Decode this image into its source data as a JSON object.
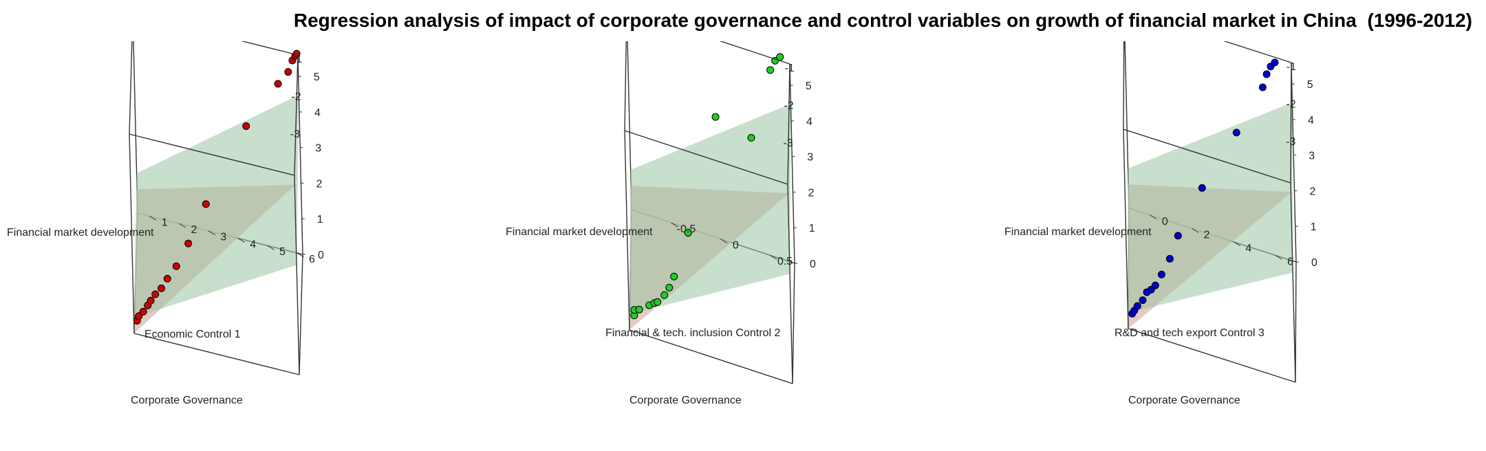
{
  "title": "Regression analysis of impact of corporate governance and control variables on growth of financial market in China",
  "title_years": "(1996-2012)",
  "chart_data": [
    {
      "type": "scatter",
      "subtype": "scatter3d-with-regression-planes",
      "xlabel": "Economic Control 1",
      "ylabel": "Corporate Governance",
      "zlabel": "Financial market development",
      "xlim": [
        0.6,
        6.2
      ],
      "ylim": [
        -3.6,
        -0.4
      ],
      "zlim": [
        0,
        5.6
      ],
      "x_ticks": [
        1,
        2,
        3,
        4,
        5,
        6
      ],
      "y_ticks": [
        -3,
        -2,
        -1
      ],
      "z_ticks": [
        0,
        1,
        2,
        3,
        4,
        5
      ],
      "point_color": "#cc0000",
      "plane_colors": [
        "#d9b8b0",
        "#9cc4a4"
      ],
      "points": [
        [
          0.7,
          -3.45,
          0.22
        ],
        [
          0.75,
          -3.3,
          0.2
        ],
        [
          0.9,
          -3.2,
          0.25
        ],
        [
          1.05,
          -3.05,
          0.3
        ],
        [
          1.15,
          -2.95,
          0.35
        ],
        [
          1.3,
          -2.8,
          0.4
        ],
        [
          1.5,
          -2.65,
          0.45
        ],
        [
          1.7,
          -2.45,
          0.55
        ],
        [
          2.0,
          -2.2,
          0.7
        ],
        [
          2.4,
          -1.8,
          1.0
        ],
        [
          3.0,
          -1.3,
          1.7
        ],
        [
          4.4,
          -0.75,
          3.6
        ],
        [
          5.5,
          -0.45,
          4.7
        ],
        [
          5.85,
          -0.35,
          5.0
        ],
        [
          6.0,
          -0.3,
          5.3
        ],
        [
          6.1,
          -0.3,
          5.45
        ],
        [
          6.15,
          -0.28,
          5.5
        ]
      ]
    },
    {
      "type": "scatter",
      "subtype": "scatter3d-with-regression-planes",
      "xlabel": "Financial & tech. inclusion Control 2",
      "ylabel": "Corporate Governance",
      "zlabel": "Financial market development",
      "xlim": [
        -0.9,
        0.75
      ],
      "ylim": [
        -3.6,
        -0.4
      ],
      "zlim": [
        0,
        5.6
      ],
      "x_ticks": [
        -0.5,
        0,
        0.5
      ],
      "y_ticks": [
        -3,
        -2,
        -1
      ],
      "z_ticks": [
        0,
        1,
        2,
        3,
        4,
        5
      ],
      "point_color": "#22cc22",
      "plane_colors": [
        "#d9b8b0",
        "#9cc4a4"
      ],
      "points": [
        [
          -0.85,
          -3.5,
          0.35
        ],
        [
          -0.85,
          -3.4,
          0.4
        ],
        [
          -0.8,
          -3.3,
          0.35
        ],
        [
          -0.7,
          -3.1,
          0.35
        ],
        [
          -0.65,
          -2.95,
          0.3
        ],
        [
          -0.62,
          -2.85,
          0.25
        ],
        [
          -0.55,
          -2.7,
          0.35
        ],
        [
          -0.5,
          -2.6,
          0.5
        ],
        [
          -0.45,
          -2.5,
          0.75
        ],
        [
          -0.3,
          -2.2,
          1.8
        ],
        [
          0.0,
          -1.7,
          4.8
        ],
        [
          0.35,
          -1.1,
          3.9
        ],
        [
          0.55,
          -0.45,
          5.3
        ],
        [
          0.6,
          -0.35,
          5.5
        ],
        [
          0.65,
          -0.3,
          5.6
        ]
      ]
    },
    {
      "type": "scatter",
      "subtype": "scatter3d-with-regression-planes",
      "xlabel": "R&D and tech export Control 3",
      "ylabel": "Corporate Governance",
      "zlabel": "Financial market development",
      "xlim": [
        -1,
        7
      ],
      "ylim": [
        -3.6,
        -0.4
      ],
      "zlim": [
        0,
        5.6
      ],
      "x_ticks": [
        0,
        2,
        4,
        6
      ],
      "y_ticks": [
        -3,
        -2,
        -1
      ],
      "z_ticks": [
        0,
        1,
        2,
        3,
        4,
        5
      ],
      "point_color": "#0000cc",
      "plane_colors": [
        "#d9b8b0",
        "#9cc4a4"
      ],
      "points": [
        [
          -0.8,
          -3.45,
          0.3
        ],
        [
          -0.7,
          -3.35,
          0.3
        ],
        [
          -0.55,
          -3.25,
          0.35
        ],
        [
          -0.3,
          -3.05,
          0.35
        ],
        [
          -0.1,
          -2.85,
          0.4
        ],
        [
          0.1,
          -2.7,
          0.35
        ],
        [
          0.3,
          -2.55,
          0.35
        ],
        [
          0.6,
          -2.3,
          0.45
        ],
        [
          1.0,
          -2.0,
          0.65
        ],
        [
          1.4,
          -1.6,
          0.95
        ],
        [
          2.6,
          -1.3,
          2.2
        ],
        [
          4.3,
          -0.85,
          3.6
        ],
        [
          5.6,
          -0.55,
          4.8
        ],
        [
          5.8,
          -0.45,
          5.1
        ],
        [
          6.0,
          -0.4,
          5.3
        ],
        [
          6.2,
          -0.35,
          5.4
        ]
      ]
    }
  ]
}
